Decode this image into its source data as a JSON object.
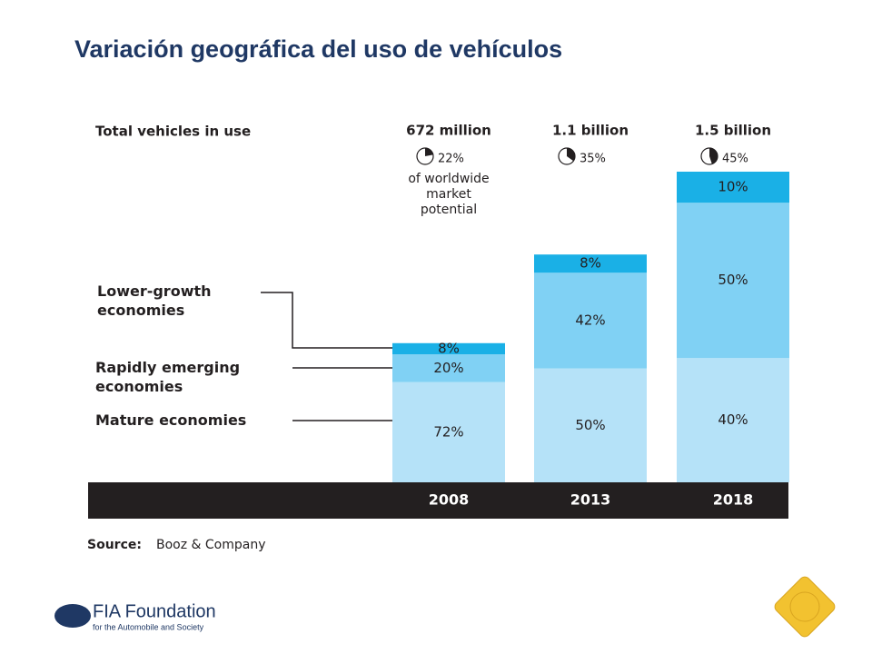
{
  "title": "Variación geográfica del uso de vehículos",
  "chart_data": {
    "type": "stacked_bar",
    "header_label": "Total vehicles in use",
    "categories": [
      "2008",
      "2013",
      "2018"
    ],
    "totals": [
      {
        "value": 672,
        "label": "672 million"
      },
      {
        "value": 1100,
        "label": "1.1 billion"
      },
      {
        "value": 1500,
        "label": "1.5 billion"
      }
    ],
    "market_share": [
      22,
      35,
      45
    ],
    "market_share_labels": [
      "22%",
      "35%",
      "45%"
    ],
    "market_share_note": "of worldwide market potential",
    "series": [
      {
        "name": "Mature economies",
        "color": "#b5e2f8",
        "values": [
          72,
          50,
          40
        ],
        "value_labels": [
          "72%",
          "50%",
          "40%"
        ]
      },
      {
        "name": "Rapidly emerging economies",
        "color": "#80d1f4",
        "values": [
          20,
          42,
          50
        ],
        "value_labels": [
          "20%",
          "42%",
          "50%"
        ]
      },
      {
        "name": "Lower-growth economies",
        "color": "#1ab0e6",
        "values": [
          8,
          8,
          10
        ],
        "value_labels": [
          "8%",
          "8%",
          "10%"
        ]
      }
    ],
    "source_label": "Source:",
    "source": "Booz & Company"
  },
  "footer": {
    "logo_text": "FIA Foundation",
    "logo_subtext": "for the Automobile and Society"
  }
}
